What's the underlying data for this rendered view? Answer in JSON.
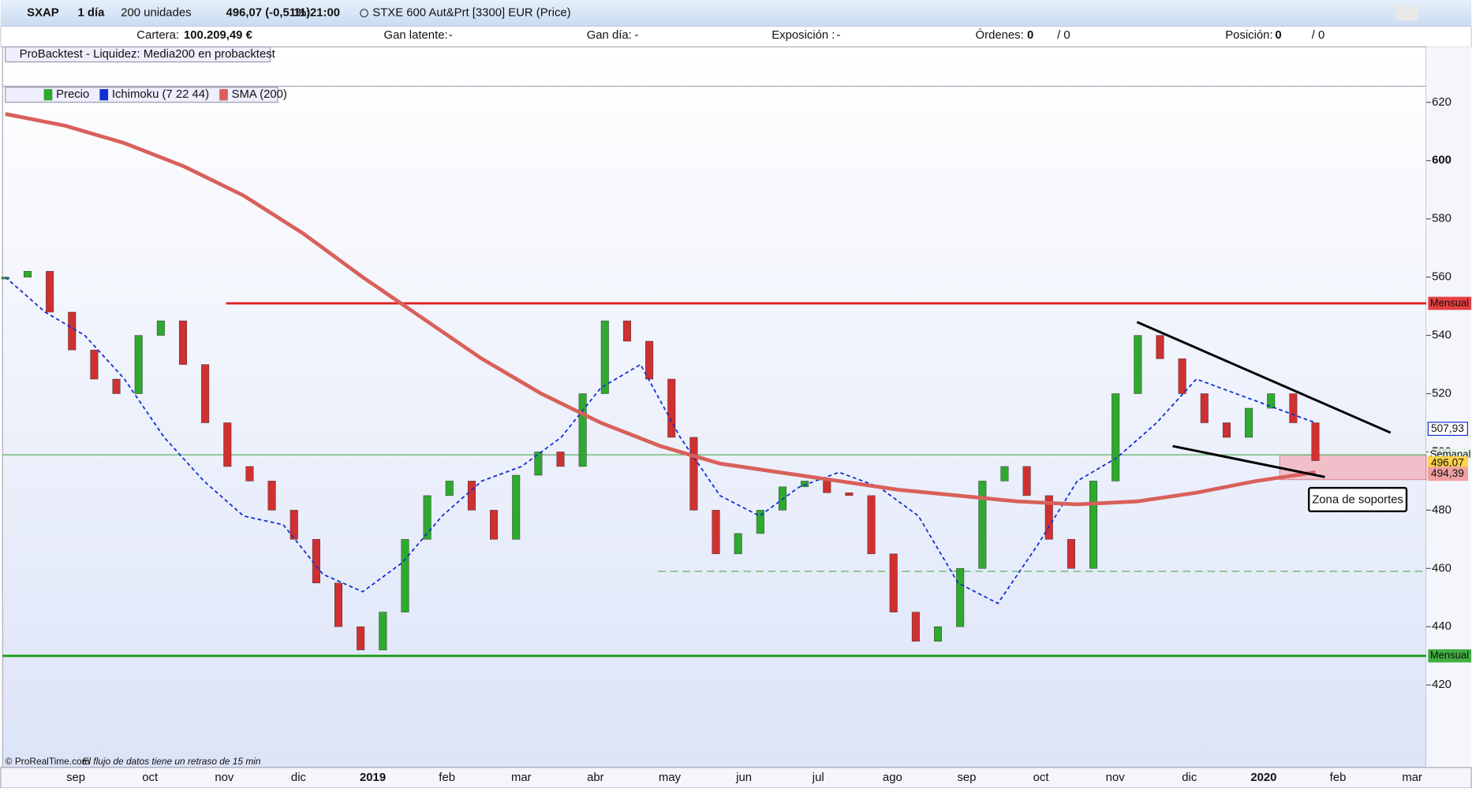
{
  "toolbar": {
    "symbol": "SXAP",
    "period": "1 día",
    "units": "200 unidades",
    "price": "496,07 (-0,51%)",
    "time": "11:21:00",
    "instrument": "STXE 600 Aut&Prt [3300] EUR (Price)"
  },
  "info_bar": {
    "cartera_label": "Cartera:",
    "cartera_value": "100.209,49 €",
    "latente_label": "Gan latente:",
    "latente_value": "-",
    "dia_label": "Gan día:",
    "dia_value": "-",
    "exposicion_label": "Exposición :",
    "exposicion_value": "-",
    "ordenes_label": "Órdenes:",
    "ordenes_value": "0",
    "ordenes_total": "/ 0",
    "posicion_label": "Posición:",
    "posicion_value": "0",
    "posicion_total": "/ 0"
  },
  "backtest_label": "ProBacktest - Liquidez: Media200 en probacktest",
  "footer": {
    "copyright": "© ProRealTime.com",
    "delay": "El flujo de datos tiene un retraso de 15 min"
  },
  "chart_data": {
    "type": "line",
    "x_axis_labels": [
      "sep",
      "oct",
      "nov",
      "dic",
      "2019",
      "feb",
      "mar",
      "abr",
      "may",
      "jun",
      "jul",
      "ago",
      "sep",
      "oct",
      "nov",
      "dic",
      "2020",
      "feb",
      "mar"
    ],
    "ylim": [
      391.7,
      625.5
    ],
    "yticks": [
      420,
      440,
      460,
      480,
      500,
      520,
      540,
      560,
      580,
      600,
      620
    ],
    "series": [
      {
        "name": "Precio",
        "style": "candles",
        "color": "#2eaa2e",
        "down_color": "#d03030",
        "values": [
          560,
          562,
          548,
          535,
          525,
          520,
          540,
          545,
          530,
          510,
          495,
          490,
          480,
          470,
          455,
          440,
          432,
          445,
          470,
          485,
          490,
          480,
          470,
          492,
          500,
          495,
          520,
          545,
          538,
          525,
          505,
          480,
          465,
          472,
          480,
          488,
          490,
          486,
          485,
          465,
          445,
          435,
          440,
          460,
          490,
          495,
          485,
          470,
          460,
          490,
          520,
          540,
          532,
          520,
          510,
          505,
          515,
          520,
          510,
          497
        ]
      },
      {
        "name": "Ichimoku (7 22 44)",
        "style": "dashed",
        "color": "#1030d0",
        "values": [
          560,
          548,
          540,
          525,
          505,
          490,
          478,
          475,
          458,
          452,
          462,
          478,
          490,
          495,
          505,
          522,
          530,
          505,
          485,
          478,
          488,
          493,
          488,
          478,
          455,
          448,
          468,
          490,
          498,
          510,
          525,
          520,
          515,
          510
        ]
      },
      {
        "name": "SMA (200)",
        "style": "thick",
        "color": "#d9605a",
        "values": [
          616,
          612,
          606,
          598,
          588,
          575,
          560,
          546,
          532,
          520,
          510,
          502,
          496,
          493,
          490,
          487,
          485,
          483,
          482,
          483,
          486,
          490,
          493
        ]
      }
    ],
    "levels": [
      {
        "value": 551,
        "label": "Mensual",
        "color": "#e02020"
      },
      {
        "value": 430,
        "label": "Mensual",
        "color": "#20a020"
      },
      {
        "value": 499,
        "label": "Semanal",
        "color": "#60b060"
      },
      {
        "value": 459,
        "color": "#60b060"
      }
    ],
    "price_tags": [
      {
        "value": 507.93,
        "label": "507,93",
        "color": "#1030d0"
      },
      {
        "value": 496.07,
        "label": "496,07",
        "color": "#ffd24a"
      },
      {
        "value": 494.39,
        "label": "494,39",
        "color": "#f0a0a0"
      }
    ],
    "trendlines": [
      [
        544.6,
        506.6
      ],
      [
        502,
        491.4
      ]
    ],
    "support_zone": {
      "range": [
        490.5,
        499
      ],
      "label": "Zona de soportes"
    }
  }
}
